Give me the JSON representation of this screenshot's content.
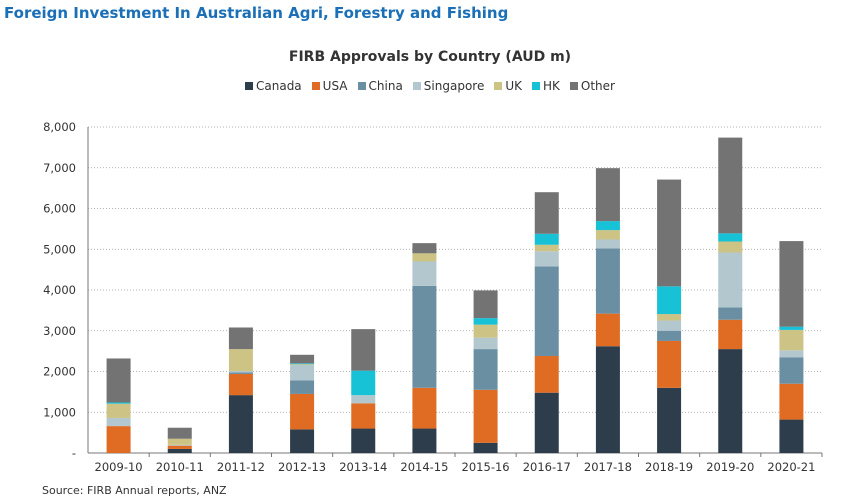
{
  "page_title": "Foreign Investment In Australian Agri, Forestry and Fishing",
  "source": "Source: FIRB Annual reports, ANZ",
  "chart_data": {
    "type": "bar",
    "stacked": true,
    "title": "FIRB Approvals by Country (AUD m)",
    "legend_position": "top-center",
    "grid": true,
    "ylim": [
      0,
      8000
    ],
    "yticks": [
      0,
      1000,
      2000,
      3000,
      4000,
      5000,
      6000,
      7000,
      8000
    ],
    "ytick_labels": [
      "-",
      "1,000",
      "2,000",
      "3,000",
      "4,000",
      "5,000",
      "6,000",
      "7,000",
      "8,000"
    ],
    "categories": [
      "2009-10",
      "2010-11",
      "2011-12",
      "2012-13",
      "2013-14",
      "2014-15",
      "2015-16",
      "2016-17",
      "2017-18",
      "2018-19",
      "2019-20",
      "2020-21"
    ],
    "series": [
      {
        "name": "Canada",
        "color": "#2e3d4b",
        "values": [
          0,
          100,
          1420,
          580,
          600,
          600,
          250,
          1480,
          2620,
          1600,
          2550,
          820
        ]
      },
      {
        "name": "USA",
        "color": "#e06c23",
        "values": [
          660,
          80,
          520,
          870,
          620,
          1000,
          1300,
          900,
          800,
          1150,
          720,
          880
        ]
      },
      {
        "name": "China",
        "color": "#6a8fa3",
        "values": [
          0,
          0,
          40,
          330,
          0,
          2500,
          1000,
          2200,
          1600,
          250,
          300,
          650
        ]
      },
      {
        "name": "Singapore",
        "color": "#b3c7cf",
        "values": [
          200,
          20,
          30,
          380,
          200,
          600,
          280,
          370,
          220,
          250,
          1350,
          170
        ]
      },
      {
        "name": "UK",
        "color": "#ccc385",
        "values": [
          350,
          150,
          540,
          20,
          0,
          200,
          320,
          160,
          230,
          160,
          270,
          500
        ]
      },
      {
        "name": "HK",
        "color": "#17c1d6",
        "values": [
          30,
          0,
          0,
          20,
          600,
          0,
          160,
          270,
          220,
          680,
          200,
          80
        ]
      },
      {
        "name": "Other",
        "color": "#737373",
        "values": [
          1080,
          270,
          530,
          210,
          1020,
          250,
          680,
          1020,
          1300,
          2620,
          2350,
          2100
        ]
      }
    ]
  }
}
